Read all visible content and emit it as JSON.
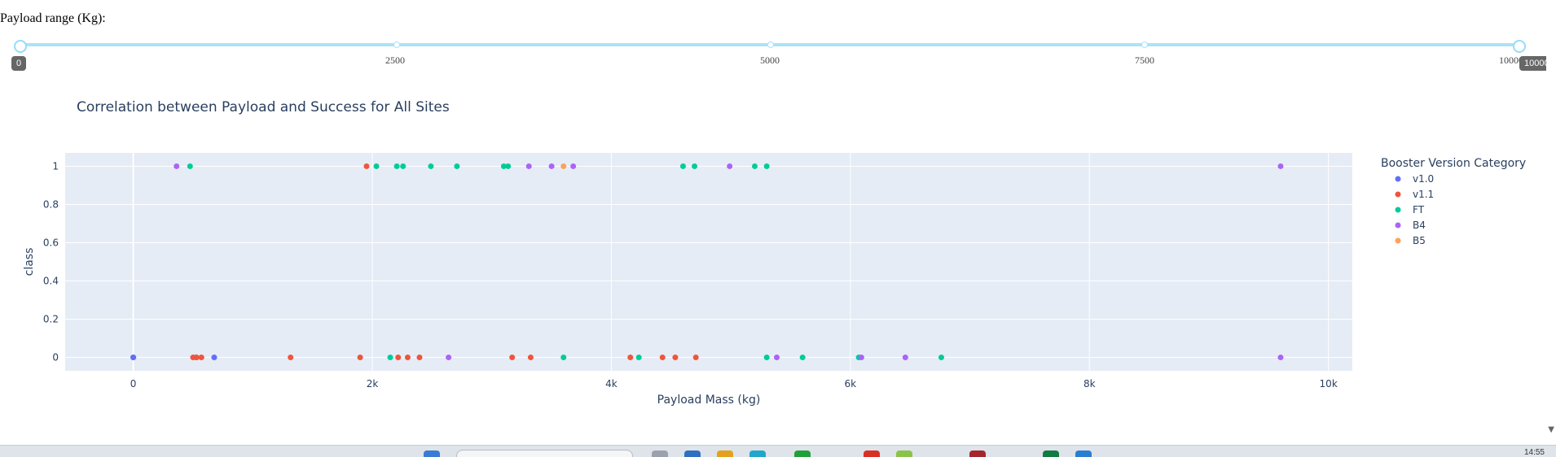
{
  "slider": {
    "label": "Payload range (Kg):",
    "min": 0,
    "max": 10000,
    "value": [
      0,
      10000
    ],
    "marks": [
      "0",
      "2500",
      "5000",
      "7500",
      "10000"
    ],
    "tip_low": "0",
    "tip_high": "10000",
    "color": "#96dbfa"
  },
  "chart_data": {
    "type": "scatter",
    "title": "Correlation between Payload and Success for All Sites",
    "xlabel": "Payload Mass (kg)",
    "ylabel": "class",
    "xlim": [
      -570,
      10200
    ],
    "ylim": [
      -0.07,
      1.07
    ],
    "xticks": [
      0,
      2000,
      4000,
      6000,
      8000,
      10000
    ],
    "xtick_labels": [
      "0",
      "2k",
      "4k",
      "6k",
      "8k",
      "10k"
    ],
    "yticks": [
      0,
      0.2,
      0.4,
      0.6,
      0.8,
      1
    ],
    "ytick_labels": [
      "0",
      "0.2",
      "0.4",
      "0.6",
      "0.8",
      "1"
    ],
    "grid": true,
    "legend_title": "Booster Version Category",
    "legend_position": "right",
    "series": [
      {
        "name": "v1.0",
        "color": "#636efa",
        "points": [
          [
            0,
            0
          ],
          [
            0,
            0
          ],
          [
            525,
            0
          ],
          [
            677,
            0
          ]
        ]
      },
      {
        "name": "v1.1",
        "color": "#ef553b",
        "points": [
          [
            500,
            0
          ],
          [
            530,
            0
          ],
          [
            570,
            0
          ],
          [
            1316,
            0
          ],
          [
            1898,
            0
          ],
          [
            1952,
            1
          ],
          [
            2216,
            0
          ],
          [
            2296,
            0
          ],
          [
            2395,
            0
          ],
          [
            3170,
            0
          ],
          [
            3325,
            0
          ],
          [
            4159,
            0
          ],
          [
            4428,
            0
          ],
          [
            4535,
            0
          ],
          [
            4707,
            0
          ]
        ]
      },
      {
        "name": "FT",
        "color": "#00cc96",
        "points": [
          [
            475,
            1
          ],
          [
            2034,
            1
          ],
          [
            2150,
            0
          ],
          [
            2205,
            1
          ],
          [
            2257,
            1
          ],
          [
            2490,
            1
          ],
          [
            2708,
            1
          ],
          [
            3100,
            1
          ],
          [
            3136,
            1
          ],
          [
            3600,
            0
          ],
          [
            4230,
            0
          ],
          [
            4600,
            1
          ],
          [
            4696,
            1
          ],
          [
            5200,
            1
          ],
          [
            5300,
            0
          ],
          [
            5300,
            1
          ],
          [
            5600,
            0
          ],
          [
            6070,
            0
          ],
          [
            6761,
            0
          ]
        ]
      },
      {
        "name": "B4",
        "color": "#ab63fa",
        "points": [
          [
            362,
            1
          ],
          [
            2638,
            0
          ],
          [
            3310,
            1
          ],
          [
            3500,
            1
          ],
          [
            3681,
            1
          ],
          [
            4990,
            1
          ],
          [
            5384,
            0
          ],
          [
            6092,
            0
          ],
          [
            6460,
            0
          ],
          [
            9600,
            1
          ],
          [
            9600,
            0
          ]
        ]
      },
      {
        "name": "B5",
        "color": "#ffa15a",
        "points": [
          [
            3600,
            1
          ]
        ]
      }
    ]
  },
  "taskbar": {
    "time": "14:55"
  }
}
